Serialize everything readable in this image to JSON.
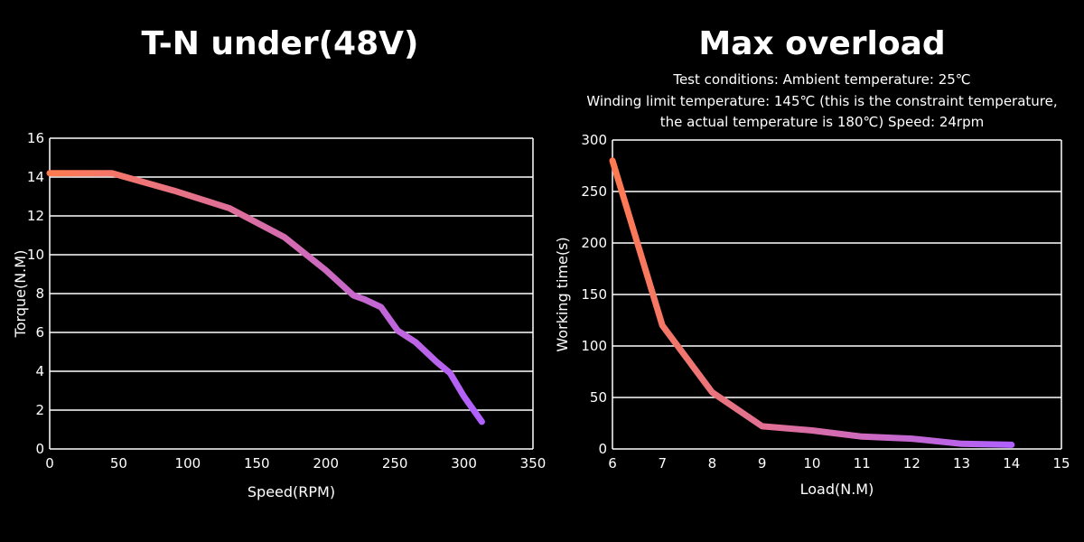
{
  "chart_data": [
    {
      "type": "line",
      "title": "T-N under(48V)",
      "xlabel": "Speed(RPM)",
      "ylabel": "Torque(N.M)",
      "xlim": [
        0,
        350
      ],
      "ylim": [
        0,
        16
      ],
      "xticks": [
        0,
        50,
        100,
        150,
        200,
        250,
        300,
        350
      ],
      "yticks": [
        0,
        2,
        4,
        6,
        8,
        10,
        12,
        14,
        16
      ],
      "grid": "horizontal",
      "line_colors": [
        "#ff7a50",
        "#b060ff"
      ],
      "series": [
        {
          "x": [
            0,
            45,
            90,
            130,
            170,
            200,
            220,
            228,
            240,
            252,
            265,
            280,
            290,
            300,
            313
          ],
          "y": [
            14.2,
            14.2,
            13.3,
            12.4,
            10.9,
            9.2,
            7.9,
            7.7,
            7.3,
            6.1,
            5.5,
            4.5,
            3.9,
            2.7,
            1.4
          ]
        }
      ]
    },
    {
      "type": "line",
      "title": "Max overload",
      "subtitle": [
        "Test conditions: Ambient temperature: 25℃",
        "Winding limit temperature: 145℃ (this is the constraint temperature,",
        "the actual temperature is 180℃)     Speed: 24rpm"
      ],
      "xlabel": "Load(N.M)",
      "ylabel": "Working time(s)",
      "xlim": [
        6,
        15
      ],
      "ylim": [
        0,
        300
      ],
      "xticks": [
        6,
        7,
        8,
        9,
        10,
        11,
        12,
        13,
        14,
        15
      ],
      "yticks": [
        0,
        50,
        100,
        150,
        200,
        250,
        300
      ],
      "grid": "horizontal",
      "line_colors": [
        "#ff7a50",
        "#b060ff"
      ],
      "series": [
        {
          "x": [
            6,
            7,
            8,
            9,
            10,
            11,
            12,
            13,
            14
          ],
          "y": [
            280,
            120,
            55,
            22,
            18,
            12,
            10,
            5,
            4
          ]
        }
      ]
    }
  ]
}
